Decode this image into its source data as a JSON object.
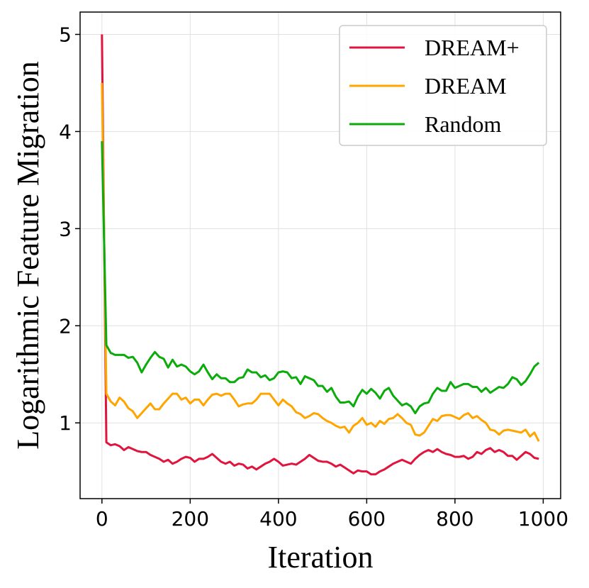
{
  "chart_data": {
    "type": "line",
    "xlabel": "Iteration",
    "ylabel": "Logarithmic Feature Migration",
    "x": [
      0,
      10,
      20,
      30,
      40,
      50,
      60,
      70,
      80,
      90,
      100,
      110,
      120,
      130,
      140,
      150,
      160,
      170,
      180,
      190,
      200,
      210,
      220,
      230,
      240,
      250,
      260,
      270,
      280,
      290,
      300,
      310,
      320,
      330,
      340,
      350,
      360,
      370,
      380,
      390,
      400,
      410,
      420,
      430,
      440,
      450,
      460,
      470,
      480,
      490,
      500,
      510,
      520,
      530,
      540,
      550,
      560,
      570,
      580,
      590,
      600,
      610,
      620,
      630,
      640,
      650,
      660,
      670,
      680,
      690,
      700,
      710,
      720,
      730,
      740,
      750,
      760,
      770,
      780,
      790,
      800,
      810,
      820,
      830,
      840,
      850,
      860,
      870,
      880,
      890,
      900,
      910,
      920,
      930,
      940,
      950,
      960,
      970,
      980,
      990
    ],
    "series": [
      {
        "name": "DREAM+",
        "color": "#e0143c",
        "values": [
          5.0,
          0.8,
          0.77,
          0.78,
          0.76,
          0.72,
          0.75,
          0.73,
          0.71,
          0.7,
          0.7,
          0.67,
          0.65,
          0.63,
          0.6,
          0.62,
          0.58,
          0.6,
          0.63,
          0.65,
          0.64,
          0.6,
          0.63,
          0.63,
          0.65,
          0.68,
          0.64,
          0.6,
          0.58,
          0.6,
          0.56,
          0.58,
          0.57,
          0.53,
          0.55,
          0.52,
          0.55,
          0.58,
          0.6,
          0.63,
          0.6,
          0.56,
          0.57,
          0.58,
          0.57,
          0.6,
          0.63,
          0.67,
          0.64,
          0.61,
          0.6,
          0.6,
          0.58,
          0.55,
          0.57,
          0.54,
          0.51,
          0.48,
          0.51,
          0.5,
          0.5,
          0.47,
          0.47,
          0.5,
          0.52,
          0.55,
          0.58,
          0.6,
          0.62,
          0.6,
          0.58,
          0.63,
          0.67,
          0.7,
          0.72,
          0.7,
          0.73,
          0.7,
          0.68,
          0.67,
          0.65,
          0.65,
          0.66,
          0.63,
          0.65,
          0.7,
          0.68,
          0.72,
          0.74,
          0.7,
          0.72,
          0.7,
          0.66,
          0.66,
          0.62,
          0.66,
          0.7,
          0.68,
          0.64,
          0.63
        ]
      },
      {
        "name": "DREAM",
        "color": "#ffa500",
        "values": [
          4.5,
          1.3,
          1.22,
          1.18,
          1.26,
          1.22,
          1.15,
          1.12,
          1.05,
          1.1,
          1.15,
          1.2,
          1.14,
          1.14,
          1.2,
          1.25,
          1.3,
          1.3,
          1.24,
          1.26,
          1.2,
          1.24,
          1.24,
          1.18,
          1.24,
          1.29,
          1.3,
          1.28,
          1.3,
          1.3,
          1.24,
          1.17,
          1.19,
          1.2,
          1.2,
          1.24,
          1.3,
          1.3,
          1.3,
          1.24,
          1.18,
          1.24,
          1.2,
          1.17,
          1.11,
          1.09,
          1.05,
          1.07,
          1.1,
          1.09,
          1.05,
          1.02,
          1.0,
          0.97,
          0.95,
          0.96,
          0.9,
          0.97,
          1.0,
          1.05,
          0.98,
          1.0,
          0.96,
          1.02,
          0.99,
          1.04,
          1.05,
          1.09,
          1.05,
          1.0,
          0.98,
          0.88,
          0.87,
          0.9,
          0.97,
          1.04,
          1.02,
          1.07,
          1.08,
          1.08,
          1.06,
          1.04,
          1.08,
          1.1,
          1.05,
          1.07,
          1.03,
          1.0,
          0.93,
          0.92,
          0.88,
          0.92,
          0.93,
          0.92,
          0.91,
          0.9,
          0.93,
          0.86,
          0.9,
          0.81
        ]
      },
      {
        "name": "Random",
        "color": "#0aab0a",
        "values": [
          3.9,
          1.8,
          1.72,
          1.7,
          1.7,
          1.7,
          1.67,
          1.68,
          1.62,
          1.52,
          1.6,
          1.67,
          1.73,
          1.68,
          1.66,
          1.57,
          1.65,
          1.58,
          1.6,
          1.58,
          1.53,
          1.5,
          1.53,
          1.6,
          1.52,
          1.45,
          1.5,
          1.46,
          1.46,
          1.42,
          1.42,
          1.46,
          1.47,
          1.55,
          1.52,
          1.52,
          1.47,
          1.49,
          1.44,
          1.46,
          1.52,
          1.53,
          1.52,
          1.46,
          1.47,
          1.4,
          1.48,
          1.46,
          1.44,
          1.38,
          1.38,
          1.32,
          1.36,
          1.27,
          1.21,
          1.21,
          1.22,
          1.17,
          1.27,
          1.34,
          1.3,
          1.35,
          1.31,
          1.25,
          1.33,
          1.36,
          1.28,
          1.23,
          1.18,
          1.2,
          1.17,
          1.1,
          1.17,
          1.2,
          1.21,
          1.3,
          1.36,
          1.33,
          1.33,
          1.42,
          1.36,
          1.38,
          1.4,
          1.4,
          1.37,
          1.37,
          1.32,
          1.36,
          1.31,
          1.34,
          1.37,
          1.36,
          1.4,
          1.47,
          1.45,
          1.39,
          1.43,
          1.5,
          1.58,
          1.62
        ]
      }
    ],
    "xlim": [
      -49.5,
      1039.5
    ],
    "ylim": [
      0.22,
      5.23
    ],
    "xticks": [
      0,
      200,
      400,
      600,
      800,
      1000
    ],
    "yticks": [
      1,
      2,
      3,
      4,
      5
    ],
    "grid": true,
    "legend": "upper right"
  }
}
